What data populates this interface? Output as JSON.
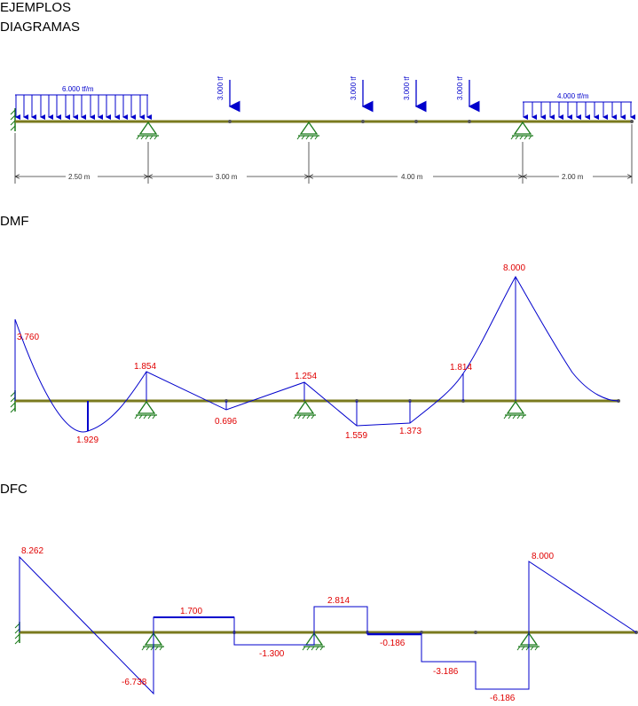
{
  "header": {
    "line1": "EJEMPLOS",
    "line2": "DIAGRAMAS"
  },
  "sections": {
    "dmf": "DMF",
    "dfc": "DFC"
  },
  "loads": {
    "dist_left": "6.000 tf/m",
    "dist_right": "4.000 tf/m",
    "point_1": "3.000 tf",
    "point_2": "3.000 tf",
    "point_3": "3.000 tf",
    "point_4": "3.000 tf"
  },
  "dimensions": {
    "span_1": "2.50 m",
    "span_2": "3.00 m",
    "span_3": "4.00 m",
    "span_4": "2.00 m"
  },
  "dmf_values": {
    "v1": "3.760",
    "v2": "1.929",
    "v3": "1.854",
    "v4": "0.696",
    "v5": "1.254",
    "v6": "1.559",
    "v7": "1.373",
    "v8": "1.814",
    "v9": "8.000"
  },
  "dfc_values": {
    "v1": "8.262",
    "v2": "-6.738",
    "v3": "1.700",
    "v4": "-1.300",
    "v5": "2.814",
    "v6": "-0.186",
    "v7": "-3.186",
    "v8": "-6.186",
    "v9": "8.000"
  },
  "colors": {
    "beam": "#7a7a1e",
    "diagram": "#0000cc",
    "support": "#1a7a1a",
    "label": "#e00000"
  }
}
